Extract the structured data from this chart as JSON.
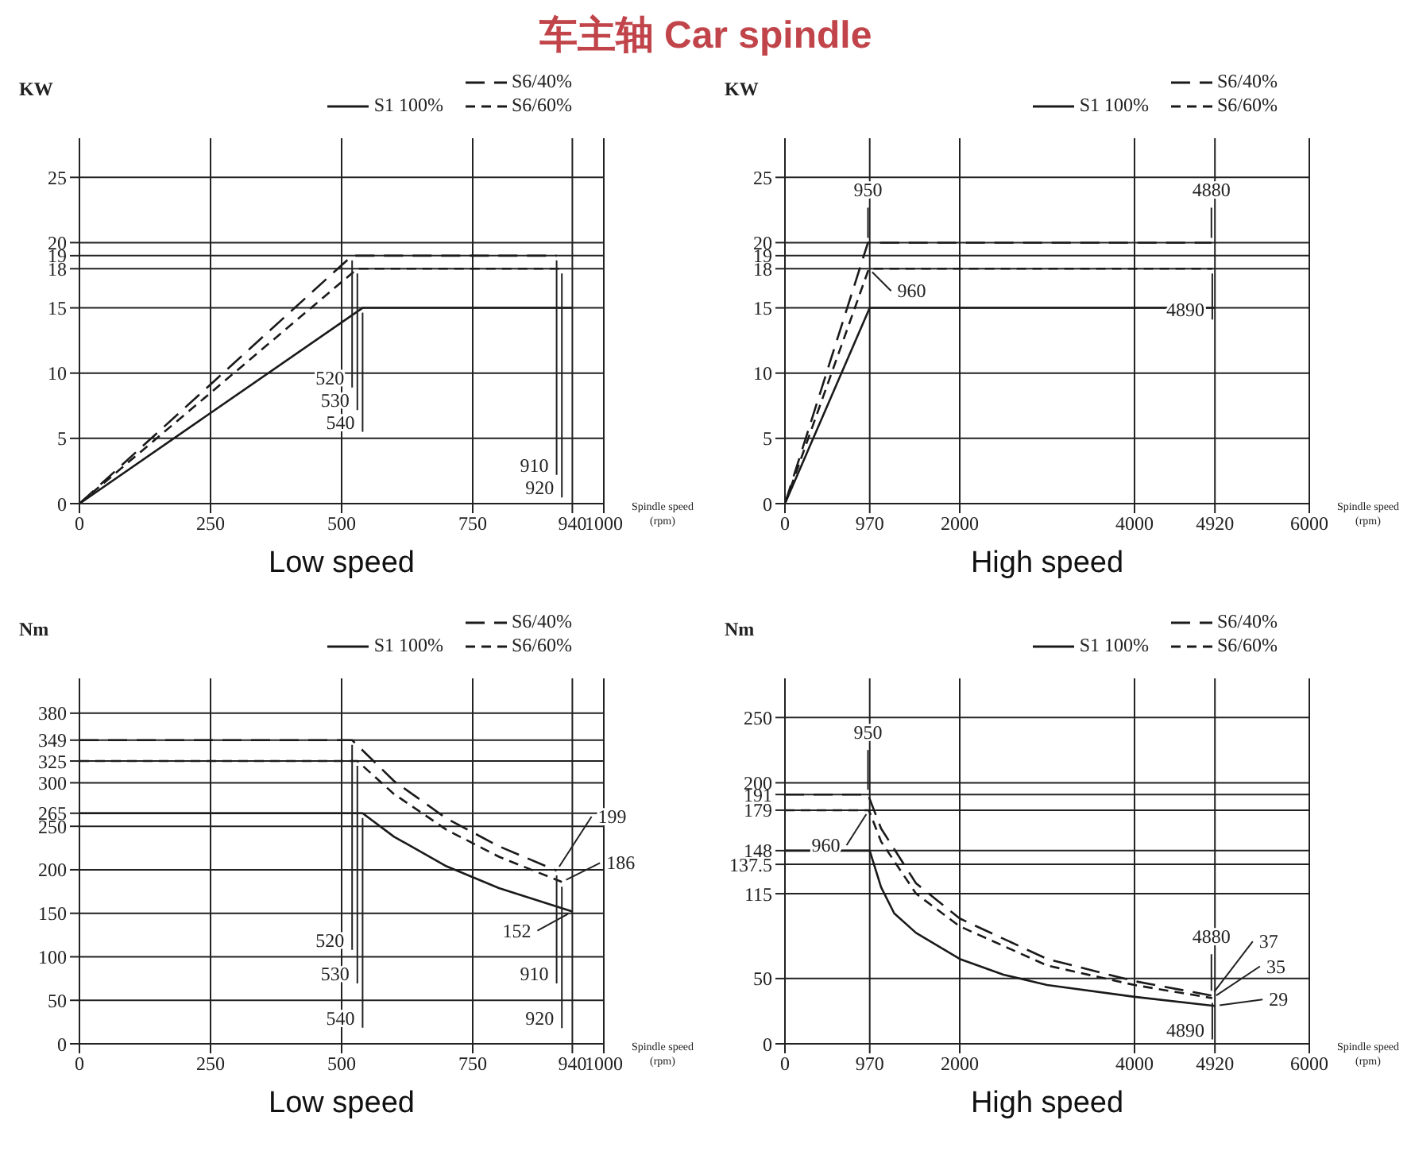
{
  "chart_data": [
    {
      "type": "line",
      "title": "车主轴 Car spindle",
      "subtitle": "Low speed",
      "ylabel": "KW",
      "xlabel": "Spindle speed (rpm)",
      "xlim": [
        0,
        1000
      ],
      "xticks": [
        0,
        250,
        500,
        750,
        940,
        1000
      ],
      "ylim": [
        0,
        28
      ],
      "yticks": [
        0,
        5,
        10,
        15,
        18,
        19,
        20,
        25
      ],
      "grid": true,
      "legend": "top right",
      "series": [
        {
          "name": "S1 100%",
          "color": "#1a1a1a",
          "line_style": "solid",
          "x": [
            0,
            540,
            940
          ],
          "values": [
            0,
            15,
            15
          ]
        },
        {
          "name": "S6/40%",
          "color": "#1a1a1a",
          "line_style": "dashed",
          "x": [
            0,
            520,
            910
          ],
          "values": [
            0,
            19,
            19
          ]
        },
        {
          "name": "S6/60%",
          "color": "#1a1a1a",
          "line_style": "dashed",
          "x": [
            0,
            530,
            920
          ],
          "values": [
            0,
            18,
            18
          ]
        }
      ],
      "annotations": [
        {
          "text": "520",
          "x": 520,
          "y": 19
        },
        {
          "text": "530",
          "x": 530,
          "y": 18
        },
        {
          "text": "540",
          "x": 540,
          "y": 15
        },
        {
          "text": "910",
          "x": 910,
          "y": 19
        },
        {
          "text": "920",
          "x": 920,
          "y": 18
        }
      ]
    },
    {
      "type": "line",
      "subtitle": "High speed",
      "ylabel": "KW",
      "xlabel": "Spindle speed (rpm)",
      "xlim": [
        0,
        6000
      ],
      "xticks": [
        0,
        970,
        2000,
        4000,
        4920,
        6000
      ],
      "ylim": [
        0,
        28
      ],
      "yticks": [
        0,
        5,
        10,
        15,
        18,
        19,
        20,
        25
      ],
      "grid": true,
      "legend": "top right",
      "series": [
        {
          "name": "S1 100%",
          "color": "#1a1a1a",
          "line_style": "solid",
          "x": [
            0,
            970,
            4920
          ],
          "values": [
            0,
            15,
            15
          ]
        },
        {
          "name": "S6/40%",
          "color": "#1a1a1a",
          "line_style": "dashed",
          "x": [
            0,
            950,
            4880
          ],
          "values": [
            0,
            20,
            20
          ]
        },
        {
          "name": "S6/60%",
          "color": "#1a1a1a",
          "line_style": "dashed",
          "x": [
            0,
            960,
            4890
          ],
          "values": [
            0,
            18,
            18
          ]
        }
      ],
      "annotations": [
        {
          "text": "950",
          "x": 950,
          "y": 20
        },
        {
          "text": "960",
          "x": 960,
          "y": 18
        },
        {
          "text": "4880",
          "x": 4880,
          "y": 20
        },
        {
          "text": "4890",
          "x": 4890,
          "y": 18
        }
      ]
    },
    {
      "type": "line",
      "subtitle": "Low speed",
      "ylabel": "Nm",
      "xlabel": "Spindle speed (rpm)",
      "xlim": [
        0,
        1000
      ],
      "xticks": [
        0,
        250,
        500,
        750,
        940,
        1000
      ],
      "ylim": [
        0,
        420
      ],
      "yticks": [
        0,
        50,
        100,
        150,
        200,
        250,
        265,
        300,
        325,
        349,
        380
      ],
      "grid": true,
      "legend": "top right",
      "series": [
        {
          "name": "S1 100%",
          "color": "#1a1a1a",
          "line_style": "solid",
          "x": [
            0,
            540,
            600,
            700,
            800,
            940
          ],
          "values": [
            265,
            265,
            238,
            204,
            179,
            152
          ]
        },
        {
          "name": "S6/40%",
          "color": "#1a1a1a",
          "line_style": "dashed",
          "x": [
            0,
            520,
            600,
            700,
            800,
            910
          ],
          "values": [
            349,
            349,
            302,
            259,
            227,
            199
          ]
        },
        {
          "name": "S6/60%",
          "color": "#1a1a1a",
          "line_style": "dashed",
          "x": [
            0,
            530,
            600,
            700,
            800,
            920
          ],
          "values": [
            325,
            325,
            287,
            246,
            215,
            186
          ]
        }
      ],
      "annotations": [
        {
          "text": "520",
          "x": 520,
          "y": 349
        },
        {
          "text": "530",
          "x": 530,
          "y": 325
        },
        {
          "text": "540",
          "x": 540,
          "y": 265
        },
        {
          "text": "910",
          "x": 910,
          "y": 199
        },
        {
          "text": "920",
          "x": 920,
          "y": 186
        },
        {
          "text": "199",
          "x": 910,
          "y": 199
        },
        {
          "text": "186",
          "x": 920,
          "y": 186
        },
        {
          "text": "152",
          "x": 940,
          "y": 152
        }
      ]
    },
    {
      "type": "line",
      "subtitle": "High speed",
      "ylabel": "Nm",
      "xlabel": "Spindle speed (rpm)",
      "xlim": [
        0,
        6000
      ],
      "xticks": [
        0,
        970,
        2000,
        4000,
        4920,
        6000
      ],
      "ylim": [
        0,
        280
      ],
      "yticks": [
        0,
        50,
        115,
        137.5,
        148,
        179,
        191,
        200,
        250
      ],
      "grid": true,
      "legend": "top right",
      "series": [
        {
          "name": "S1 100%",
          "color": "#1a1a1a",
          "line_style": "solid",
          "x": [
            0,
            970,
            1100,
            1250,
            1500,
            2000,
            2500,
            3000,
            4000,
            4920
          ],
          "values": [
            148,
            148,
            120,
            100,
            85,
            65,
            53,
            45,
            36,
            29
          ]
        },
        {
          "name": "S6/40%",
          "color": "#1a1a1a",
          "line_style": "dashed",
          "x": [
            0,
            950,
            1100,
            1500,
            2000,
            3000,
            4000,
            4880
          ],
          "values": [
            191,
            191,
            165,
            123,
            96,
            65,
            48,
            37
          ]
        },
        {
          "name": "S6/60%",
          "color": "#1a1a1a",
          "line_style": "dashed",
          "x": [
            0,
            960,
            1100,
            1500,
            2000,
            3000,
            4000,
            4890
          ],
          "values": [
            179,
            179,
            155,
            115,
            90,
            60,
            45,
            35
          ]
        }
      ],
      "annotations": [
        {
          "text": "950",
          "x": 950,
          "y": 191
        },
        {
          "text": "960",
          "x": 960,
          "y": 179
        },
        {
          "text": "4880",
          "x": 4880,
          "y": 37
        },
        {
          "text": "4890",
          "x": 4890,
          "y": 35
        },
        {
          "text": "37",
          "x": 4880,
          "y": 37
        },
        {
          "text": "35",
          "x": 4890,
          "y": 35
        },
        {
          "text": "29",
          "x": 4920,
          "y": 29
        }
      ]
    }
  ]
}
